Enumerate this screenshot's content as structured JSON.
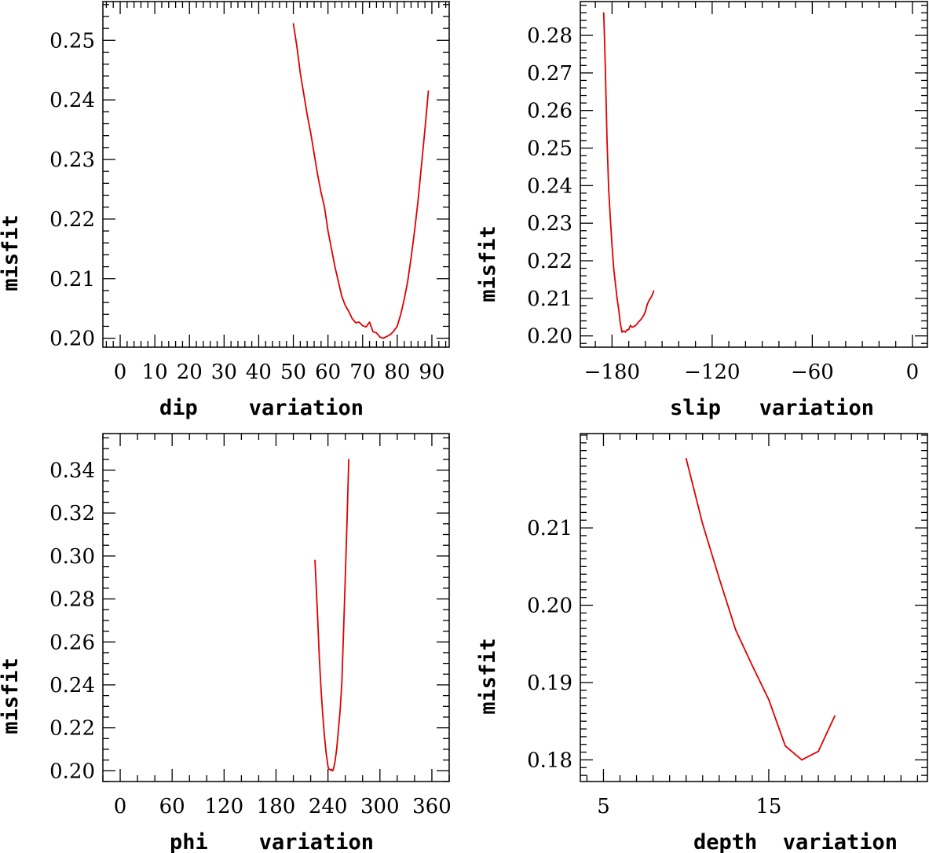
{
  "chart_data": [
    {
      "type": "line",
      "xlabel": "dip    variation",
      "ylabel": "misfit",
      "xlim": [
        -5,
        95
      ],
      "ylim": [
        0.1985,
        0.2565
      ],
      "x_ticks": [
        0,
        10,
        20,
        30,
        40,
        50,
        60,
        70,
        80,
        90
      ],
      "x_minor": 2,
      "y_ticks": [
        0.2,
        0.21,
        0.22,
        0.23,
        0.24,
        0.25
      ],
      "y_minor": 0.002,
      "x_tick_labels": [
        "0",
        "10",
        "20",
        "30",
        "40",
        "50",
        "60",
        "70",
        "80",
        "90"
      ],
      "y_tick_labels": [
        "0.20",
        "0.21",
        "0.22",
        "0.23",
        "0.24",
        "0.25"
      ],
      "x": [
        50,
        51,
        52,
        53,
        54,
        55,
        56,
        57,
        58,
        59,
        60,
        61,
        62,
        63,
        64,
        65,
        66,
        67,
        68,
        69,
        70,
        71,
        72,
        73,
        74,
        75,
        76,
        77,
        78,
        79,
        80,
        81,
        82,
        83,
        84,
        85,
        86,
        87,
        88,
        89
      ],
      "values": [
        0.2528,
        0.249,
        0.2445,
        0.241,
        0.2375,
        0.2345,
        0.231,
        0.2275,
        0.2245,
        0.222,
        0.218,
        0.215,
        0.212,
        0.2095,
        0.207,
        0.2055,
        0.2045,
        0.2033,
        0.2026,
        0.2027,
        0.2021,
        0.2019,
        0.2027,
        0.2011,
        0.2009,
        0.2002,
        0.2,
        0.2003,
        0.2006,
        0.2012,
        0.202,
        0.204,
        0.2065,
        0.2095,
        0.2135,
        0.218,
        0.223,
        0.229,
        0.235,
        0.2415
      ]
    },
    {
      "type": "line",
      "xlabel": "slip   variation",
      "ylabel": "misfit",
      "xlim": [
        -199,
        9
      ],
      "ylim": [
        0.197,
        0.289
      ],
      "x_ticks": [
        -180,
        -120,
        -60,
        0
      ],
      "x_minor": 10,
      "y_ticks": [
        0.2,
        0.21,
        0.22,
        0.23,
        0.24,
        0.25,
        0.26,
        0.27,
        0.28
      ],
      "y_minor": 0.002,
      "x_tick_labels": [
        "−180",
        "−120",
        "−60",
        "0"
      ],
      "y_tick_labels": [
        "0.20",
        "0.21",
        "0.22",
        "0.23",
        "0.24",
        "0.25",
        "0.26",
        "0.27",
        "0.28"
      ],
      "x": [
        -185,
        -184,
        -183,
        -182,
        -181,
        -180,
        -179,
        -178,
        -177,
        -176,
        -175,
        -174,
        -173,
        -172,
        -171,
        -170,
        -169,
        -168,
        -167,
        -166,
        -165,
        -164,
        -163,
        -162,
        -161,
        -160,
        -159,
        -158,
        -157,
        -156,
        -155
      ],
      "values": [
        0.286,
        0.271,
        0.252,
        0.239,
        0.231,
        0.224,
        0.218,
        0.214,
        0.21,
        0.207,
        0.2032,
        0.201,
        0.2013,
        0.201,
        0.2016,
        0.2017,
        0.2028,
        0.2023,
        0.2025,
        0.2027,
        0.2032,
        0.2038,
        0.2042,
        0.2048,
        0.2055,
        0.2065,
        0.2082,
        0.2093,
        0.21,
        0.2108,
        0.212
      ]
    },
    {
      "type": "line",
      "xlabel": "phi    variation",
      "ylabel": "misfit",
      "xlim": [
        -20,
        380
      ],
      "ylim": [
        0.195,
        0.357
      ],
      "x_ticks": [
        0,
        60,
        120,
        180,
        240,
        300,
        360
      ],
      "x_minor": 20,
      "y_ticks": [
        0.2,
        0.22,
        0.24,
        0.26,
        0.28,
        0.3,
        0.32,
        0.34
      ],
      "y_minor": 0.005,
      "x_tick_labels": [
        "0",
        "60",
        "120",
        "180",
        "240",
        "300",
        "360"
      ],
      "y_tick_labels": [
        "0.20",
        "0.22",
        "0.24",
        "0.26",
        "0.28",
        "0.30",
        "0.32",
        "0.34"
      ],
      "x": [
        225,
        228,
        230,
        232,
        234,
        236,
        238,
        240,
        241,
        242,
        243,
        244,
        245,
        246,
        248,
        250,
        252,
        254,
        256,
        258,
        260,
        262,
        264
      ],
      "values": [
        0.298,
        0.272,
        0.253,
        0.238,
        0.226,
        0.216,
        0.208,
        0.202,
        0.2008,
        0.2006,
        0.2003,
        0.2007,
        0.2,
        0.2003,
        0.204,
        0.21,
        0.219,
        0.228,
        0.241,
        0.265,
        0.29,
        0.316,
        0.345
      ]
    },
    {
      "type": "line",
      "xlabel": "depth  variation",
      "ylabel": "misfit",
      "xlim": [
        3.6,
        24.6
      ],
      "ylim": [
        0.1772,
        0.2222
      ],
      "x_ticks": [
        5,
        15
      ],
      "x_minor": 1,
      "y_ticks": [
        0.18,
        0.19,
        0.2,
        0.21
      ],
      "y_minor": 0.001,
      "x_tick_labels": [
        "5",
        "15"
      ],
      "y_tick_labels": [
        "0.18",
        "0.19",
        "0.20",
        "0.21"
      ],
      "x": [
        10,
        11,
        12,
        13,
        14,
        15,
        16,
        17,
        18,
        19
      ],
      "values": [
        0.219,
        0.2105,
        0.2035,
        0.1968,
        0.1922,
        0.1878,
        0.1818,
        0.18,
        0.1811,
        0.1857
      ]
    }
  ]
}
